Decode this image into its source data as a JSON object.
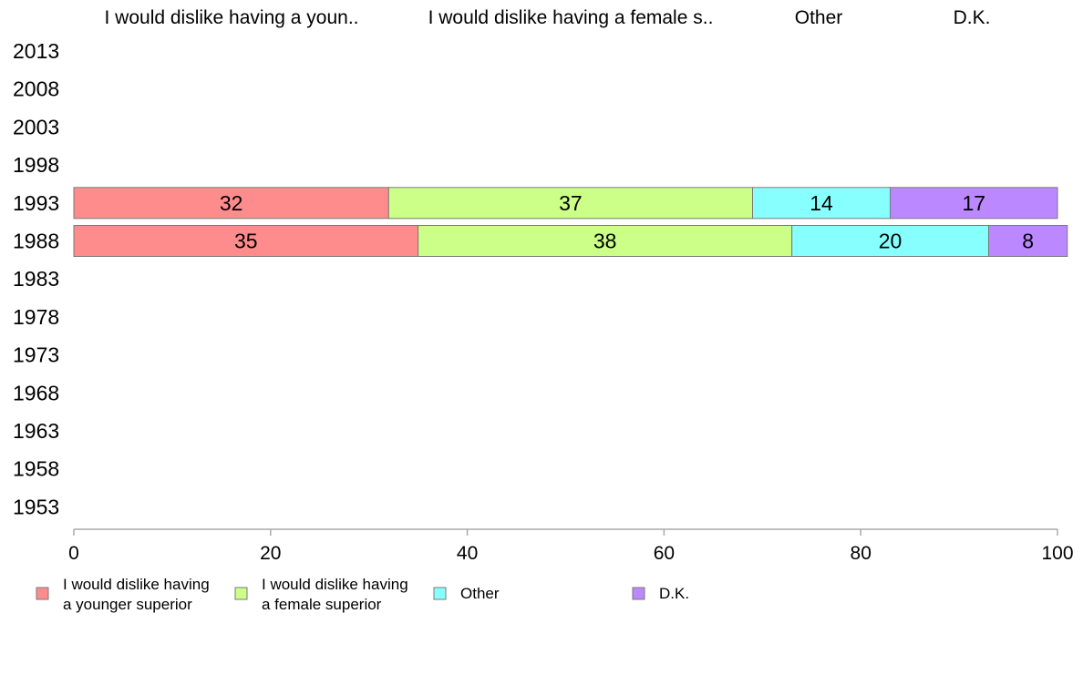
{
  "chart_data": {
    "type": "bar",
    "orientation": "horizontal",
    "stacked": true,
    "categories": [
      "2013",
      "2008",
      "2003",
      "1998",
      "1993",
      "1988",
      "1983",
      "1978",
      "1973",
      "1968",
      "1963",
      "1958",
      "1953"
    ],
    "column_headers": [
      "I would dislike having a youn..",
      "I would dislike having a female s..",
      "Other",
      "D.K."
    ],
    "series": [
      {
        "name": "I would dislike having a younger superior",
        "legend_lines": [
          "I would dislike having",
          "a younger superior"
        ],
        "color": "#ff8c8c",
        "values": [
          null,
          null,
          null,
          null,
          32,
          35,
          null,
          null,
          null,
          null,
          null,
          null,
          null
        ]
      },
      {
        "name": "I would dislike having a female superior",
        "legend_lines": [
          "I would dislike having",
          "a female superior"
        ],
        "color": "#ccff88",
        "values": [
          null,
          null,
          null,
          null,
          37,
          38,
          null,
          null,
          null,
          null,
          null,
          null,
          null
        ]
      },
      {
        "name": "Other",
        "legend_lines": [
          "Other"
        ],
        "color": "#88ffff",
        "values": [
          null,
          null,
          null,
          null,
          14,
          20,
          null,
          null,
          null,
          null,
          null,
          null,
          null
        ]
      },
      {
        "name": "D.K.",
        "legend_lines": [
          "D.K."
        ],
        "color": "#bb88ff",
        "values": [
          null,
          null,
          null,
          null,
          17,
          8,
          null,
          null,
          null,
          null,
          null,
          null,
          null
        ]
      }
    ],
    "xlim": [
      0,
      100
    ],
    "xticks": [
      "0",
      "20",
      "40",
      "60",
      "80",
      "100"
    ],
    "title": "",
    "xlabel": "",
    "ylabel": "",
    "grid": false,
    "legend_position": "bottom"
  }
}
